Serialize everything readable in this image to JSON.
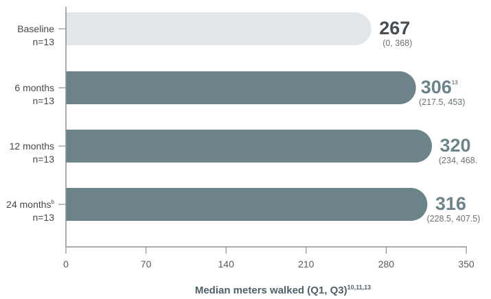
{
  "chart_data": {
    "type": "bar",
    "orientation": "horizontal",
    "categories": [
      {
        "label": "Baseline",
        "label_sup": "",
        "n_label": "n=13"
      },
      {
        "label": "6 months",
        "label_sup": "",
        "n_label": "n=13"
      },
      {
        "label": "12 months",
        "label_sup": "",
        "n_label": "n=13"
      },
      {
        "label": "24 months",
        "label_sup": "b",
        "n_label": "n=13"
      }
    ],
    "values": [
      267,
      306,
      320,
      316
    ],
    "value_labels": [
      "267",
      "306",
      "320",
      "316"
    ],
    "value_sups": [
      "",
      "13",
      "",
      ""
    ],
    "ranges": [
      "(0, 368)",
      "(217.5, 453)",
      "(234, 468.",
      "(228.5, 407.5)"
    ],
    "xlabel": "Median meters walked (Q1, Q3)",
    "xlabel_sup": "10,11,13",
    "xlim": [
      0,
      350
    ],
    "xticks": [
      0,
      70,
      140,
      210,
      280,
      350
    ],
    "colors": {
      "baseline_bar": "#e2e6e9",
      "bar": "#6c838a",
      "baseline_value": "#474c50",
      "value": "#6c838a"
    }
  }
}
